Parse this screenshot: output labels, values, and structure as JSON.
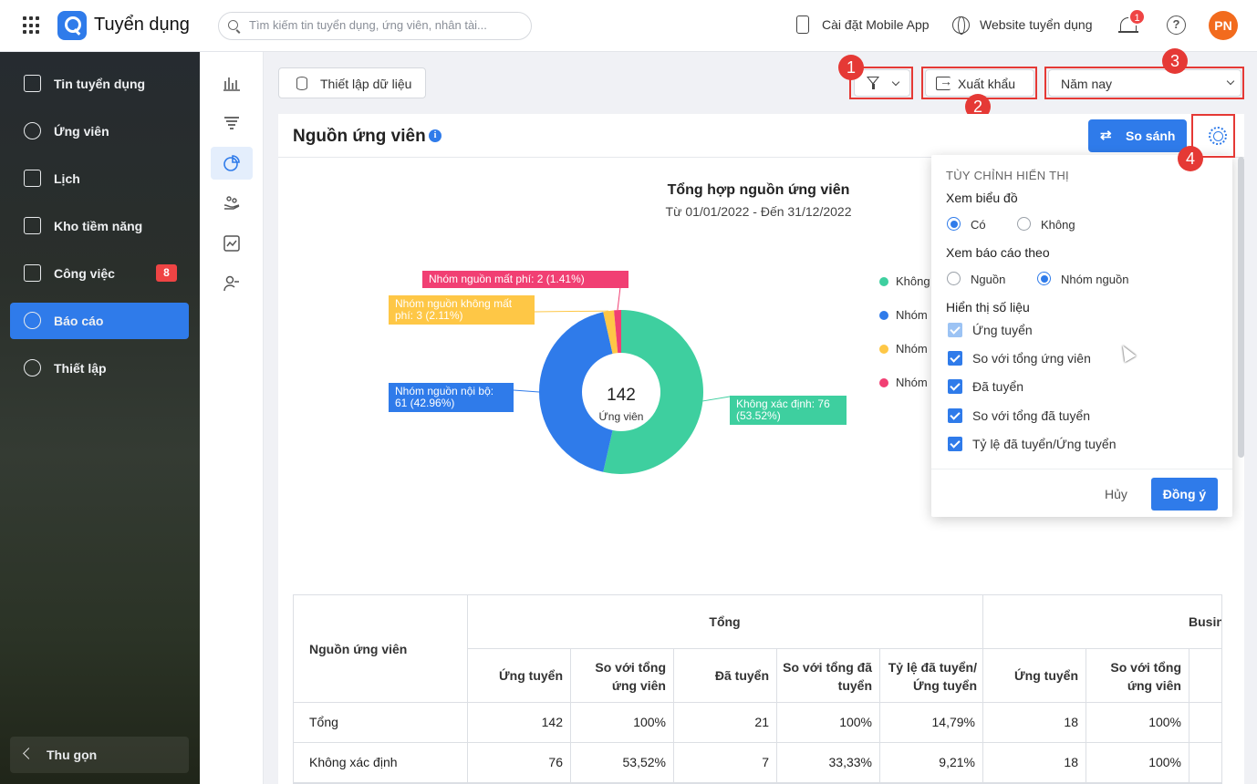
{
  "app": {
    "title": "Tuyển dụng"
  },
  "search": {
    "placeholder": "Tìm kiếm tin tuyển dụng, ứng viên, nhân tài..."
  },
  "topbar": {
    "mobile_app": "Cài đặt Mobile App",
    "website": "Website tuyển dụng",
    "notifications": "1",
    "avatar": "PN"
  },
  "sidebar": {
    "items": [
      {
        "label": "Tin tuyển dụng",
        "icon": "newspaper-icon"
      },
      {
        "label": "Ứng viên",
        "icon": "users-icon"
      },
      {
        "label": "Lịch",
        "icon": "calendar-icon"
      },
      {
        "label": "Kho tiềm năng",
        "icon": "talent-pool-icon"
      },
      {
        "label": "Công việc",
        "icon": "clipboard-icon",
        "badge": "8"
      },
      {
        "label": "Báo cáo",
        "icon": "pie-chart-icon",
        "active": true
      },
      {
        "label": "Thiết lập",
        "icon": "gear-icon"
      }
    ],
    "collapse": "Thu gọn"
  },
  "toolbar": {
    "setup_data": "Thiết lập dữ liệu",
    "export": "Xuất khẩu",
    "period": "Năm nay"
  },
  "annotations": [
    "1",
    "2",
    "3",
    "4"
  ],
  "card": {
    "title": "Nguồn ứng viên",
    "compare": "So sánh"
  },
  "chart_data": {
    "type": "pie",
    "title": "Tổng hợp nguồn ứng viên",
    "subtitle": "Từ 01/01/2022 - Đến 31/12/2022",
    "center_value": "142",
    "center_label": "Ứng viên",
    "slices": [
      {
        "name": "Không xác định",
        "value": 76,
        "percent": 53.52,
        "color": "#3ecf9f",
        "label": "Không xác định: 76 (53.52%)"
      },
      {
        "name": "Nhóm nguồn nội bộ",
        "value": 61,
        "percent": 42.96,
        "color": "#2f7bea",
        "label": "Nhóm nguồn nội bộ: 61 (42.96%)"
      },
      {
        "name": "Nhóm nguồn không mất phí",
        "value": 3,
        "percent": 2.11,
        "color": "#fec746",
        "label": "Nhóm nguồn không mất phí: 3 (2.11%)"
      },
      {
        "name": "Nhóm nguồn mất phí",
        "value": 2,
        "percent": 1.41,
        "color": "#f13f73",
        "label": "Nhóm nguồn mất phí: 2 (1.41%)"
      }
    ],
    "legend": [
      "Không",
      "Nhóm",
      "Nhóm",
      "Nhóm"
    ],
    "legend_position": "right"
  },
  "popup": {
    "caption": "TÙY CHỈNH HIỂN THỊ",
    "view_chart": {
      "label": "Xem biểu đồ",
      "yes": "Có",
      "no": "Không",
      "selected": "Có"
    },
    "report_by": {
      "label": "Xem báo cáo theo",
      "source": "Nguồn",
      "group": "Nhóm nguồn",
      "selected": "Nhóm nguồn"
    },
    "metrics": {
      "label": "Hiển thị số liệu",
      "items": [
        "Ứng tuyển",
        "So với tổng ứng viên",
        "Đã tuyển",
        "So với tổng đã tuyển",
        "Tỷ lệ đã tuyển/Ứng tuyển"
      ]
    },
    "cancel": "Hủy",
    "ok": "Đồng ý"
  },
  "table": {
    "row_header": "Nguồn ứng viên",
    "groups": [
      "Tổng",
      "Busin"
    ],
    "columns": [
      "Ứng tuyển",
      "So với tổng ứng viên",
      "Đã tuyển",
      "So với tổng đã tuyển",
      "Tỷ lệ đã tuyển/ Ứng tuyển",
      "Ứng tuyển",
      "So với tổng ứng viên"
    ],
    "rows": [
      {
        "name": "Tổng",
        "values": [
          "142",
          "100%",
          "21",
          "100%",
          "14,79%",
          "18",
          "100%"
        ]
      },
      {
        "name": "Không xác định",
        "values": [
          "76",
          "53,52%",
          "7",
          "33,33%",
          "9,21%",
          "18",
          "100%"
        ]
      }
    ]
  }
}
